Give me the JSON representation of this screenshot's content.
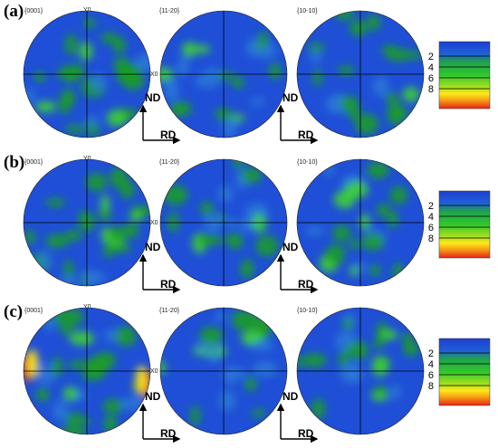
{
  "colors": {
    "background_blue": "#1f4fd6",
    "mid_green": "#1aa020",
    "bright_green": "#3ed82a",
    "yellow": "#f4e21c",
    "orange": "#f08a10",
    "red": "#e8231a"
  },
  "figure": {
    "rows": [
      {
        "letter": "(a)",
        "poles": [
          {
            "plane": "{0001}",
            "top_label": "Y0",
            "right_label": "X0"
          },
          {
            "plane": "{11-20}"
          },
          {
            "plane": "{10-10}"
          }
        ]
      },
      {
        "letter": "(b)",
        "poles": [
          {
            "plane": "{0001}",
            "top_label": "Y0",
            "right_label": "X0"
          },
          {
            "plane": "{11-20}"
          },
          {
            "plane": "{10-10}"
          }
        ]
      },
      {
        "letter": "(c)",
        "poles": [
          {
            "plane": "{0001}",
            "top_label": "Y0",
            "right_label": "X0"
          },
          {
            "plane": "{11-20}"
          },
          {
            "plane": "{10-10}"
          }
        ]
      }
    ],
    "directions": {
      "nd": "ND",
      "rd": "RD"
    },
    "colorbar": {
      "ticks": [
        "2",
        "4",
        "6",
        "8"
      ],
      "stops": [
        "#1f3fd0",
        "#1fa040",
        "#2cc828",
        "#ffe61a",
        "#f08a10",
        "#e8231a"
      ]
    }
  }
}
